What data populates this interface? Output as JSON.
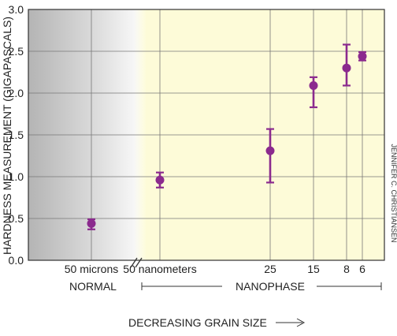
{
  "chart_data": {
    "type": "scatter",
    "ylabel": "HARDNESS MEASUREMENT (GIGAPASCALS)",
    "ylim": [
      0,
      3.0
    ],
    "yticks": [
      "0.0",
      "0.5",
      "1.0",
      "1.5",
      "2.0",
      "2.5",
      "3.0"
    ],
    "grid": true,
    "points": [
      {
        "label": "50 microns",
        "y": 0.44,
        "ylow": 0.37,
        "yhigh": 0.49,
        "region": "normal"
      },
      {
        "label": "50 nanometers",
        "y": 0.96,
        "ylow": 0.87,
        "yhigh": 1.05,
        "region": "nanophase"
      },
      {
        "label": "25",
        "y": 1.31,
        "ylow": 0.93,
        "yhigh": 1.57,
        "region": "nanophase"
      },
      {
        "label": "15",
        "y": 2.09,
        "ylow": 1.83,
        "yhigh": 2.19,
        "region": "nanophase"
      },
      {
        "label": "8",
        "y": 2.3,
        "ylow": 2.09,
        "yhigh": 2.58,
        "region": "nanophase"
      },
      {
        "label": "6",
        "y": 2.44,
        "ylow": 2.39,
        "yhigh": 2.49,
        "region": "nanophase"
      }
    ],
    "regions": {
      "normal": "NORMAL",
      "nanophase": "NANOPHASE"
    },
    "xlabel": "DECREASING GRAIN SIZE",
    "credit": "JENNIFER C. CHRISTIANSEN",
    "colors": {
      "marker": "#8b2a8e",
      "normal_bg": "#d0d0d0",
      "nano_bg": "#fdfbd8",
      "axis": "#333333",
      "grid": "#777777"
    }
  }
}
